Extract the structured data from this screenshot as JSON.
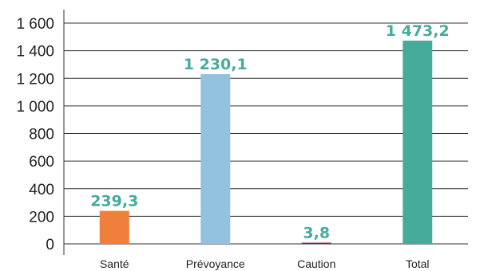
{
  "chart_data": {
    "type": "bar",
    "title": "",
    "xlabel": "",
    "ylabel": "",
    "categories": [
      "Santé",
      "Prévoyance",
      "Caution",
      "Total"
    ],
    "values": [
      239.3,
      1230.1,
      3.8,
      1473.2
    ],
    "value_labels": [
      "239,3",
      "1 230,1",
      "3,8",
      "1 473,2"
    ],
    "colors": [
      "#F07F3C",
      "#92C2E0",
      "#8B2252",
      "#47AB9C"
    ],
    "label_color": "#47AB9C",
    "ylim": [
      0,
      1600
    ],
    "yticks": [
      0,
      200,
      400,
      600,
      800,
      1000,
      1200,
      1400,
      1600
    ],
    "ytick_labels": [
      "0",
      "200",
      "400",
      "600",
      "800",
      "1 000",
      "1 200",
      "1 400",
      "1 600"
    ],
    "grid": true,
    "legend": "none"
  }
}
